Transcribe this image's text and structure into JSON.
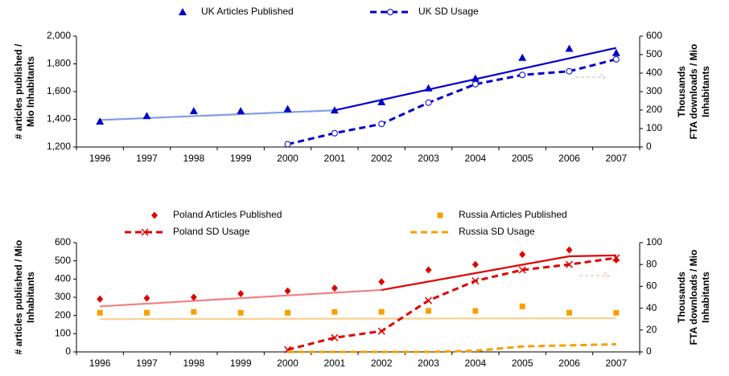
{
  "chart_data": [
    {
      "type": "line",
      "categories": [
        "1996",
        "1997",
        "1998",
        "1999",
        "2000",
        "2001",
        "2002",
        "2003",
        "2004",
        "2005",
        "2006",
        "2007"
      ],
      "ylabel": [
        "# articles published /",
        "Mio Inhabitants"
      ],
      "y2label": [
        "Thousands",
        "FTA downloads / Mio",
        "Inhabitants"
      ],
      "ylim": [
        1200,
        2000
      ],
      "yticks": [
        {
          "value": 1200,
          "label": "1,200"
        },
        {
          "value": 1400,
          "label": "1,400"
        },
        {
          "value": 1600,
          "label": "1,600"
        },
        {
          "value": 1800,
          "label": "1,800"
        },
        {
          "value": 2000,
          "label": "2,000"
        }
      ],
      "y2lim": [
        0,
        600
      ],
      "y2ticks": [
        0,
        100,
        200,
        300,
        400,
        500,
        600
      ],
      "series": [
        {
          "name": "UK Articles Published",
          "color": "#0000cc",
          "marker": "triangle",
          "line": "none",
          "values": [
            1385,
            1425,
            1460,
            1460,
            1475,
            1465,
            1525,
            1625,
            1695,
            1845,
            1910,
            1880
          ]
        },
        {
          "name": "UK SD Usage",
          "color": "#0000cc",
          "marker": "circle",
          "line": "dashed",
          "axis": "y2",
          "values": [
            null,
            null,
            null,
            null,
            15,
            75,
            125,
            240,
            340,
            390,
            410,
            475
          ]
        }
      ],
      "trendlines": [
        {
          "color": "#7f9fe0",
          "values": [
            1395,
            null,
            null,
            null,
            null,
            1465,
            null,
            null,
            null,
            null,
            null,
            null
          ]
        },
        {
          "color": "#0000cc",
          "values": [
            null,
            null,
            null,
            null,
            null,
            1465,
            null,
            null,
            null,
            null,
            null,
            1915
          ]
        }
      ]
    },
    {
      "type": "line",
      "categories": [
        "1996",
        "1997",
        "1998",
        "1999",
        "2000",
        "2001",
        "2002",
        "2003",
        "2004",
        "2005",
        "2006",
        "2007"
      ],
      "ylabel": [
        "# articles published / Mio",
        "Inhabitants"
      ],
      "y2label": [
        "Thousands",
        "FTA downloads / Mio",
        "Inhabitants"
      ],
      "ylim": [
        0,
        600
      ],
      "yticks": [
        0,
        100,
        200,
        300,
        400,
        500,
        600
      ],
      "y2lim": [
        0,
        100
      ],
      "y2ticks": [
        0,
        20,
        40,
        60,
        80,
        100
      ],
      "series": [
        {
          "name": "Poland Articles Published",
          "color": "#e00000",
          "marker": "diamond",
          "line": "none",
          "values": [
            290,
            295,
            300,
            320,
            335,
            350,
            385,
            450,
            480,
            535,
            560,
            505
          ]
        },
        {
          "name": "Russia Articles Published",
          "color": "#f5a000",
          "marker": "square",
          "line": "none",
          "values": [
            215,
            215,
            220,
            215,
            215,
            220,
            220,
            225,
            225,
            250,
            215,
            215
          ]
        },
        {
          "name": "Poland SD Usage",
          "color": "#e00000",
          "marker": "x",
          "line": "dashed",
          "axis": "y2",
          "values": [
            null,
            null,
            null,
            null,
            2,
            13,
            19,
            47,
            65,
            75,
            80,
            86
          ]
        },
        {
          "name": "Russia SD Usage",
          "color": "#f5a000",
          "marker": "none",
          "line": "dashed",
          "axis": "y2",
          "values": [
            null,
            null,
            null,
            null,
            0,
            0,
            0,
            0,
            1,
            5,
            6,
            7
          ]
        }
      ],
      "trendlines": [
        {
          "color": "#f08080",
          "values": [
            250,
            null,
            null,
            null,
            null,
            null,
            340,
            null,
            null,
            null,
            null,
            null
          ]
        },
        {
          "color": "#e00000",
          "values": [
            null,
            null,
            null,
            null,
            null,
            null,
            340,
            null,
            null,
            null,
            525,
            530
          ]
        },
        {
          "color": "#f8d090",
          "values": [
            180,
            null,
            null,
            null,
            null,
            null,
            null,
            null,
            null,
            null,
            null,
            185
          ]
        }
      ]
    }
  ]
}
